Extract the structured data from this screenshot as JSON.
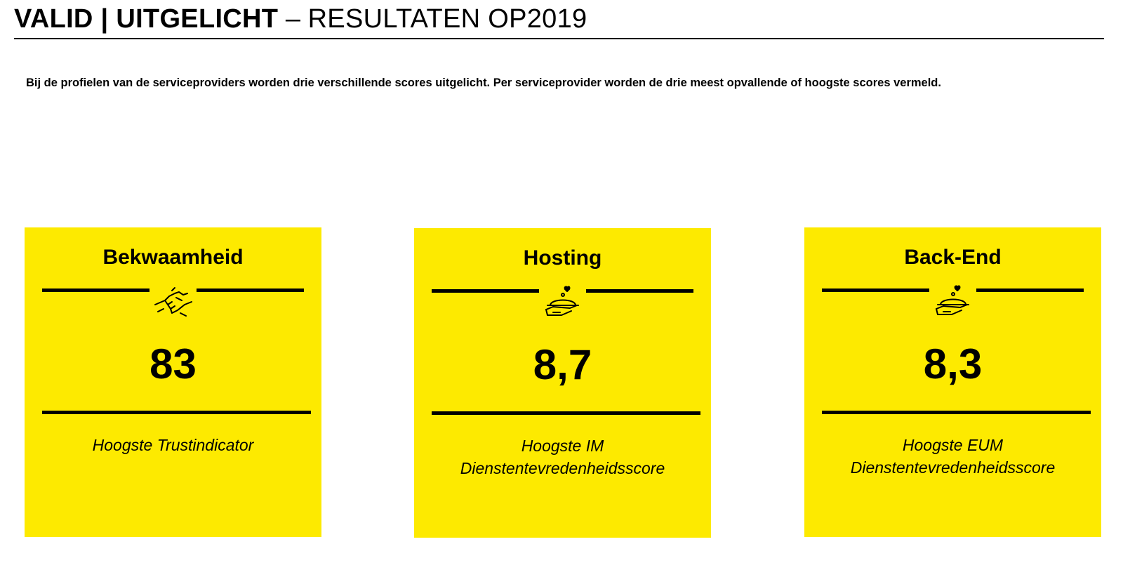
{
  "header": {
    "title_bold": "VALID | UITGELICHT",
    "separator": " – ",
    "title_light": "RESULTATEN OP2019"
  },
  "intro": "Bij de profielen van de serviceproviders worden drie verschillende scores uitgelicht. Per serviceprovider worden de drie meest opvallende of hoogste scores vermeld.",
  "colors": {
    "card_background": "#fdea00",
    "text": "#000000"
  },
  "cards": [
    {
      "title": "Bekwaamheid",
      "icon": "handshake-icon",
      "score": "83",
      "caption_line1": "Hoogste Trustindicator",
      "caption_line2": ""
    },
    {
      "title": "Hosting",
      "icon": "serving-tray-icon",
      "score": "8,7",
      "caption_line1": "Hoogste IM",
      "caption_line2": "Dienstentevredenheidsscore"
    },
    {
      "title": "Back-End",
      "icon": "serving-tray-icon",
      "score": "8,3",
      "caption_line1": "Hoogste EUM",
      "caption_line2": "Dienstentevredenheidsscore"
    }
  ]
}
